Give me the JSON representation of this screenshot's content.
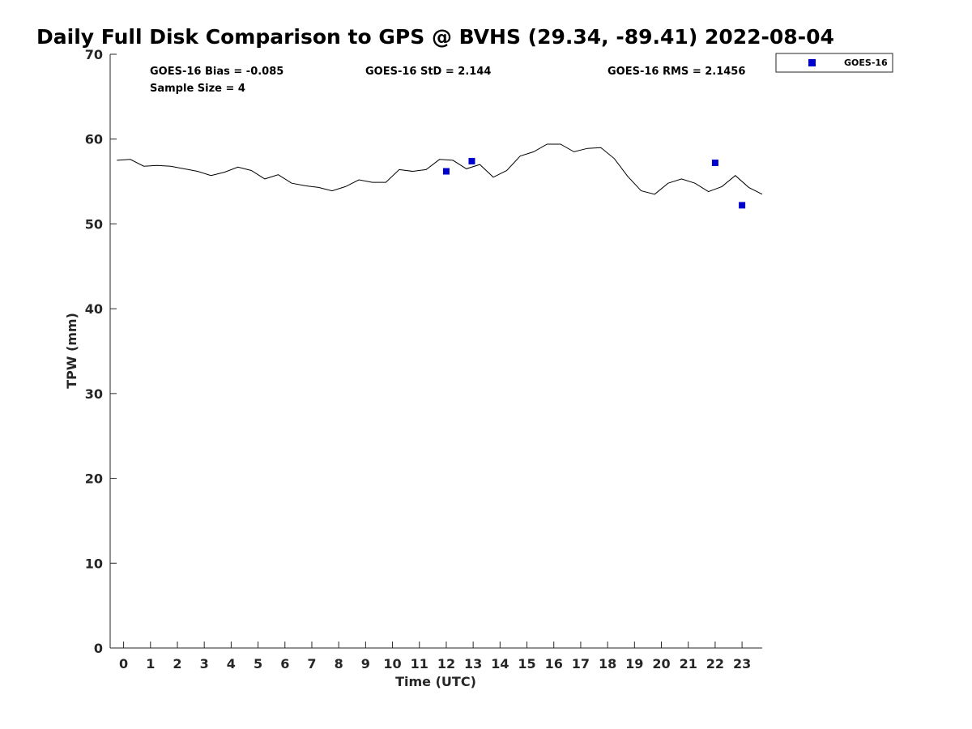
{
  "chart_data": {
    "type": "scatter",
    "title": "Daily Full Disk Comparison to GPS @ BVHS (29.34, -89.41) 2022-08-04",
    "xlabel": "Time (UTC)",
    "ylabel": "TPW (mm)",
    "xlim": [
      -0.5,
      23.75
    ],
    "ylim": [
      0,
      70
    ],
    "x_ticks": [
      0,
      1,
      2,
      3,
      4,
      5,
      6,
      7,
      8,
      9,
      10,
      11,
      12,
      13,
      14,
      15,
      16,
      17,
      18,
      19,
      20,
      21,
      22,
      23
    ],
    "y_ticks": [
      0,
      10,
      20,
      30,
      40,
      50,
      60,
      70
    ],
    "grid": false,
    "legend_position": "outside-top-right",
    "stats": [
      "GOES-16 Bias = -0.085",
      "GOES-16 StD = 2.144",
      "GOES-16 RMS = 2.1456",
      "Sample Size = 4"
    ],
    "series": [
      {
        "kind": "line",
        "color": "#000000",
        "x": [
          -0.25,
          0.25,
          0.75,
          1.25,
          1.75,
          2.25,
          2.75,
          3.25,
          3.75,
          4.25,
          4.75,
          5.25,
          5.75,
          6.25,
          6.75,
          7.25,
          7.75,
          8.25,
          8.75,
          9.25,
          9.75,
          10.25,
          10.75,
          11.25,
          11.75,
          12.25,
          12.75,
          13.25,
          13.75,
          14.25,
          14.75,
          15.25,
          15.75,
          16.25,
          16.75,
          17.25,
          17.75,
          18.25,
          18.75,
          19.25,
          19.75,
          20.25,
          20.75,
          21.25,
          21.75,
          22.25,
          22.75,
          23.25,
          23.75
        ],
        "values": [
          57.5,
          57.6,
          56.8,
          56.9,
          56.8,
          56.5,
          56.2,
          55.7,
          56.1,
          56.7,
          56.3,
          55.3,
          55.8,
          54.8,
          54.5,
          54.3,
          53.9,
          54.4,
          55.2,
          54.9,
          54.9,
          56.4,
          56.2,
          56.4,
          57.6,
          57.5,
          56.5,
          57.0,
          55.5,
          56.3,
          58.0,
          58.5,
          59.4,
          59.4,
          58.5,
          58.9,
          59.0,
          57.7,
          55.6,
          53.9,
          53.5,
          54.8,
          55.3,
          54.8,
          53.8,
          54.4,
          55.7,
          54.3,
          53.5
        ]
      },
      {
        "kind": "scatter",
        "name": "GOES-16",
        "color": "#0000cd",
        "x": [
          12.0,
          12.95,
          22.0,
          23.0
        ],
        "values": [
          56.2,
          57.4,
          57.2,
          52.2
        ]
      }
    ]
  }
}
